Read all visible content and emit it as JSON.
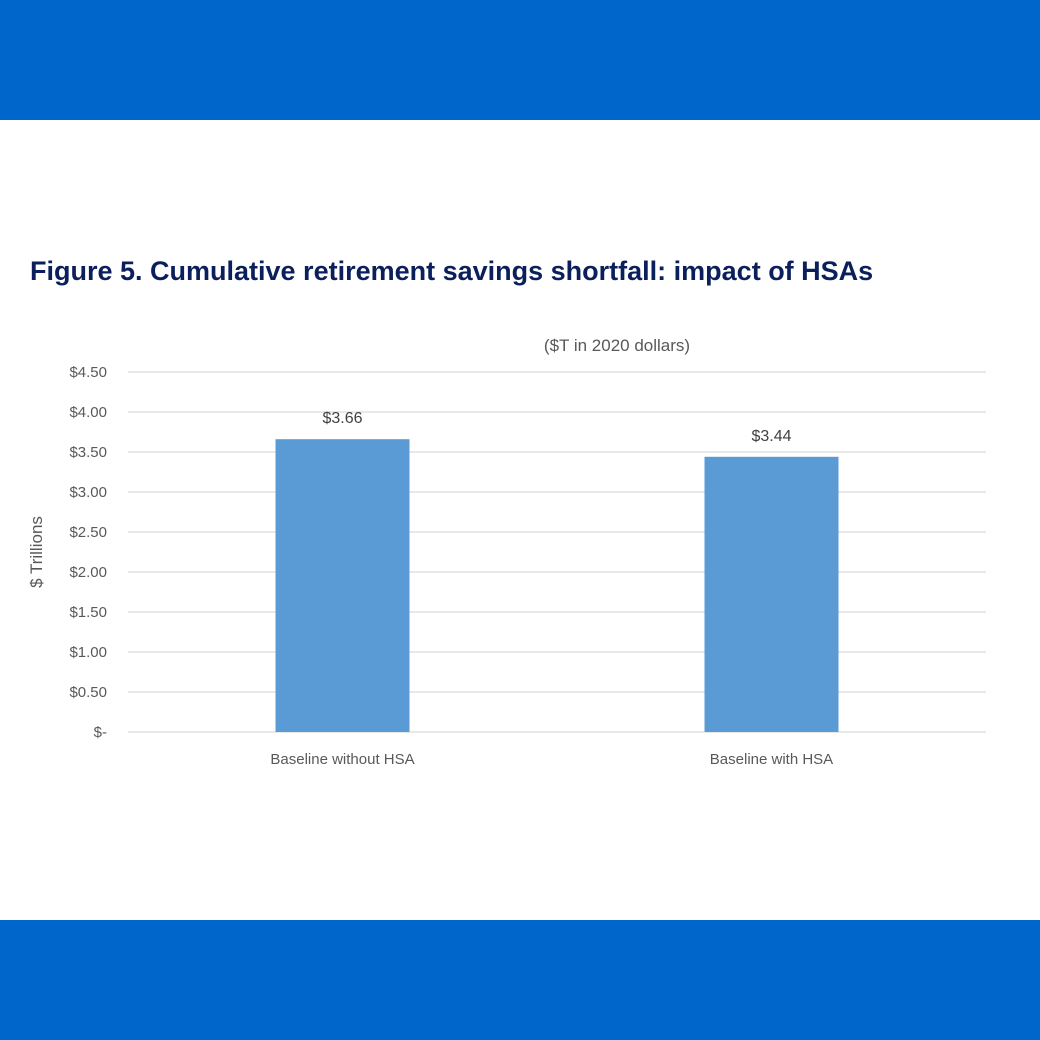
{
  "page": {
    "title": "Figure 5. Cumulative retirement savings shortfall: impact of HSAs",
    "band_color": "#0066cc",
    "title_color": "#0b1f5c"
  },
  "chart_data": {
    "type": "bar",
    "title": "Figure 5. Cumulative retirement savings shortfall: impact of HSAs",
    "subtitle": "($T in 2020 dollars)",
    "ylabel": "$ Trillions",
    "xlabel": "",
    "categories": [
      "Baseline without HSA",
      "Baseline with HSA"
    ],
    "values": [
      3.66,
      3.44
    ],
    "data_labels": [
      "$3.66",
      "$3.44"
    ],
    "ylim": [
      0,
      4.5
    ],
    "yticks": [
      0,
      0.5,
      1.0,
      1.5,
      2.0,
      2.5,
      3.0,
      3.5,
      4.0,
      4.5
    ],
    "ytick_labels": [
      "$-",
      "$0.50",
      "$1.00",
      "$1.50",
      "$2.00",
      "$2.50",
      "$3.00",
      "$3.50",
      "$4.00",
      "$4.50"
    ],
    "grid": true,
    "legend": "none",
    "bar_color": "#5b9bd5"
  }
}
